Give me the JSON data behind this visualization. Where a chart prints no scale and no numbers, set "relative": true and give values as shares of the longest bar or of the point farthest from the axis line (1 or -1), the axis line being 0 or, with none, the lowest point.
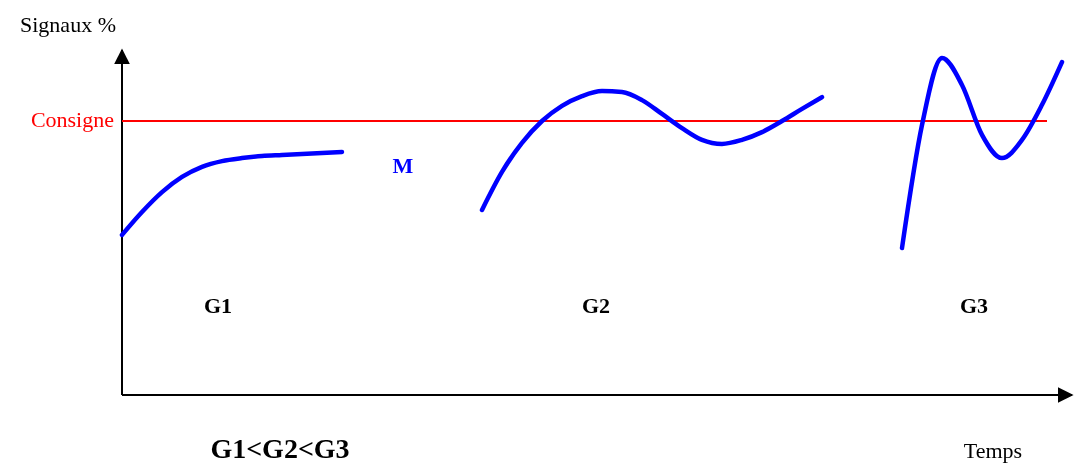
{
  "chart_data": {
    "type": "line",
    "relative": true,
    "ylabel": "Signaux %",
    "xlabel": "Temps",
    "categories": [
      null,
      null,
      null,
      null,
      null,
      null,
      null,
      null,
      null,
      null,
      null,
      null,
      null,
      null,
      null,
      null,
      null,
      null,
      null,
      null,
      null,
      null,
      null,
      null,
      null,
      null,
      null,
      null,
      null,
      null,
      null,
      null,
      null,
      null,
      null,
      null,
      null,
      null,
      null,
      null,
      null,
      null,
      null,
      null,
      null,
      null,
      null,
      null
    ],
    "series": [
      {
        "color": "#0000ff",
        "values": [
          0.475,
          0.543,
          0.602,
          0.647,
          0.677,
          0.694,
          0.703,
          0.709,
          0.712,
          0.715,
          0.718,
          0.721,
          null,
          null,
          null,
          null,
          null,
          null,
          null,
          null,
          null,
          null,
          null,
          null,
          null,
          null,
          null,
          null,
          null,
          null,
          null,
          null,
          null,
          null,
          null,
          null,
          null,
          null,
          null,
          null,
          null,
          null,
          null,
          null,
          null,
          null,
          null,
          null
        ]
      },
      {
        "color": "#0000ff",
        "values": [
          null,
          null,
          null,
          null,
          null,
          null,
          null,
          null,
          null,
          null,
          null,
          null,
          null,
          null,
          null,
          null,
          null,
          null,
          0.549,
          0.662,
          0.748,
          0.813,
          0.858,
          0.887,
          0.902,
          0.899,
          0.875,
          0.834,
          0.792,
          0.757,
          0.745,
          0.757,
          0.78,
          0.813,
          0.849,
          0.884,
          null,
          null,
          null,
          null,
          null,
          null,
          null,
          null,
          null,
          null,
          null,
          null
        ]
      },
      {
        "color": "#0000ff",
        "values": [
          null,
          null,
          null,
          null,
          null,
          null,
          null,
          null,
          null,
          null,
          null,
          null,
          null,
          null,
          null,
          null,
          null,
          null,
          null,
          null,
          null,
          null,
          null,
          null,
          null,
          null,
          null,
          null,
          null,
          null,
          null,
          null,
          null,
          null,
          null,
          null,
          null,
          null,
          null,
          0.436,
          0.801,
          1,
          0.92,
          0.772,
          0.703,
          0.757,
          0.861,
          0.988
        ]
      }
    ],
    "ref_lines": [
      {
        "axis": "y",
        "value": 0.813,
        "label": "Consigne",
        "color": "#ff0000"
      }
    ],
    "annotations": [
      "M",
      "G1",
      "G2",
      "G3",
      "G1<G2<G3"
    ]
  }
}
